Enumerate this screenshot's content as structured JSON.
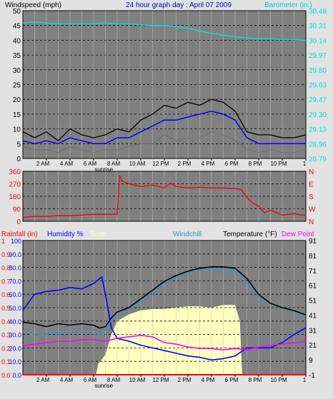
{
  "colors": {
    "background": "#e2e2e2",
    "plot_bg": "#808080",
    "grid": "#000000",
    "windspeed": "#000000",
    "windspeed_avg": "#0000ff",
    "gust": "#707070",
    "barometer": "#00e0e0",
    "direction": "#ff0000",
    "humidity": "#0000ff",
    "solar": "#ffffc0",
    "windchill": "#3399cc",
    "temperature": "#000000",
    "dewpoint": "#ff00ff",
    "rain": "#ff0000"
  },
  "chart_data": [
    {
      "type": "line",
      "title": "24 hour graph day : April 07 2009",
      "ylabel": "Windspeed (mph)",
      "y2label": "Barometer (in.)",
      "ylim": [
        0,
        50
      ],
      "y_ticks": [
        "0",
        "5",
        "10",
        "15",
        "20",
        "25",
        "30",
        "35",
        "40",
        "45",
        "50"
      ],
      "y2lim": [
        28.79,
        30.48
      ],
      "y2_ticks": [
        "28.79",
        "28.96",
        "29.13",
        "29.30",
        "29.47",
        "29.63",
        "29.80",
        "29.97",
        "30.14",
        "30.31",
        "30.48"
      ],
      "xlim": [
        0,
        24
      ],
      "x_ticks": [
        "2 AM",
        "4 AM",
        "6 AM",
        "8 AM",
        "10 AM",
        "12 PM",
        "2 PM",
        "4 PM",
        "6 PM",
        "8 PM",
        "10 PM",
        "1"
      ],
      "annotations": [
        "sunrise"
      ],
      "sunrise_hour": 6.5,
      "grid": true,
      "series": [
        {
          "role": "barometer",
          "axis": "right",
          "x": [
            0,
            1,
            2,
            3,
            4,
            5,
            6,
            7,
            8,
            9,
            10,
            11,
            12,
            13,
            14,
            15,
            16,
            17,
            18,
            19,
            20,
            21,
            22,
            23,
            24
          ],
          "values": [
            30.34,
            30.35,
            30.34,
            30.33,
            30.33,
            30.33,
            30.33,
            30.34,
            30.33,
            30.33,
            30.32,
            30.31,
            30.31,
            30.3,
            30.28,
            30.25,
            30.22,
            30.2,
            30.18,
            30.17,
            30.16,
            30.16,
            30.15,
            30.15,
            30.14
          ]
        },
        {
          "role": "windspeed",
          "axis": "left",
          "x": [
            0,
            1,
            2,
            3,
            4,
            5,
            6,
            7,
            8,
            9,
            10,
            11,
            12,
            13,
            14,
            15,
            16,
            17,
            18,
            19,
            20,
            21,
            22,
            23,
            24
          ],
          "values": [
            9,
            7,
            9,
            6,
            10,
            8,
            7,
            8,
            10,
            9,
            13,
            15,
            18,
            17,
            19,
            18,
            20,
            19,
            16,
            9,
            8,
            8,
            7,
            7,
            8
          ]
        },
        {
          "role": "windspeed_avg",
          "axis": "left",
          "x": [
            0,
            1,
            2,
            3,
            4,
            5,
            6,
            7,
            8,
            9,
            10,
            11,
            12,
            13,
            14,
            15,
            16,
            17,
            18,
            19,
            20,
            21,
            22,
            23,
            24
          ],
          "values": [
            6,
            5,
            6,
            5,
            7,
            6,
            5,
            5,
            7,
            7,
            9,
            11,
            13,
            13,
            14,
            15,
            16,
            15,
            13,
            7,
            5,
            5,
            5,
            5,
            5
          ]
        },
        {
          "role": "gust",
          "axis": "left",
          "x": [
            0,
            1,
            2,
            3,
            4,
            5,
            6,
            7,
            8,
            9,
            10,
            11,
            12,
            13,
            14,
            15,
            16,
            17,
            18,
            19,
            20,
            21,
            22,
            23,
            24
          ],
          "values": [
            4,
            3,
            3,
            2,
            4,
            3,
            2,
            3,
            3,
            4,
            5,
            5,
            8,
            6,
            7,
            7,
            9,
            8,
            6,
            3,
            2,
            3,
            2,
            2,
            3
          ]
        }
      ]
    },
    {
      "type": "line",
      "ylim": [
        0,
        360
      ],
      "y_ticks": [
        "0",
        "90",
        "180",
        "270",
        "360"
      ],
      "y2_ticks": [
        "N",
        "W",
        "S",
        "E",
        "N"
      ],
      "xlim": [
        0,
        24
      ],
      "series": [
        {
          "role": "direction",
          "x": [
            0,
            1,
            2,
            3,
            4,
            5,
            6,
            7,
            8,
            8.2,
            8.4,
            9,
            10,
            11,
            12,
            12.5,
            13,
            14,
            15,
            16,
            17,
            18,
            18.5,
            19,
            19.5,
            20,
            20.5,
            21,
            22,
            23,
            24
          ],
          "values": [
            30,
            35,
            35,
            40,
            40,
            45,
            50,
            50,
            50,
            330,
            290,
            270,
            250,
            260,
            240,
            275,
            250,
            240,
            245,
            240,
            240,
            235,
            230,
            170,
            130,
            110,
            60,
            80,
            45,
            55,
            40
          ]
        }
      ]
    },
    {
      "type": "line",
      "legend": [
        "Rainfall (in)",
        "Humidity %",
        "Solar",
        "Windchill",
        "Temperature (°F)",
        "Dew Point"
      ],
      "ylim": [
        0,
        100
      ],
      "y_ticks": [
        "0.0",
        "10.0",
        "20.0",
        "30.0",
        "40.0",
        "50.0",
        "60.0",
        "70.0",
        "80.0",
        "90.0",
        "100"
      ],
      "y_ticks_rain": [
        "0.0",
        "0.1",
        "0.2",
        "0.3",
        "0.4",
        "0.5",
        "0.6",
        "0.7",
        "0.8",
        "0.9",
        "1"
      ],
      "y2lim": [
        -1,
        91
      ],
      "y2_ticks": [
        "-1",
        "9",
        "21",
        "31",
        "41",
        "51",
        "61",
        "71",
        "81",
        "91"
      ],
      "xlim": [
        0,
        24
      ],
      "x_ticks": [
        "2 AM",
        "4 AM",
        "6 AM",
        "8 AM",
        "10 AM",
        "12 PM",
        "2 PM",
        "4 PM",
        "6 PM",
        "8 PM",
        "10 PM",
        "1"
      ],
      "annotations": [
        "sunrise"
      ],
      "series": [
        {
          "role": "humidity",
          "axis": "left",
          "x": [
            0,
            1,
            2,
            3,
            4,
            5,
            6,
            6.7,
            7,
            7.5,
            8,
            9,
            10,
            11,
            12,
            13,
            14,
            15,
            16,
            17,
            18,
            19,
            20,
            21,
            22,
            23,
            24
          ],
          "values": [
            48,
            60,
            62,
            63,
            65,
            64,
            68,
            73,
            60,
            35,
            27,
            25,
            22,
            20,
            18,
            16,
            14,
            13,
            11,
            12,
            14,
            20,
            20,
            20,
            24,
            30,
            35
          ]
        },
        {
          "role": "solar",
          "axis": "left",
          "x": [
            0,
            6.2,
            6.4,
            7,
            7.5,
            8,
            9,
            10,
            11,
            12,
            13,
            14,
            15,
            16,
            17,
            18,
            18.4,
            18.6,
            24
          ],
          "values": [
            0,
            0,
            8,
            15,
            30,
            40,
            45,
            48,
            49,
            49,
            50,
            51,
            51,
            50,
            52,
            52,
            40,
            0,
            0
          ]
        },
        {
          "role": "windchill",
          "axis": "right",
          "x": [
            0,
            1,
            2,
            3,
            4,
            5,
            6,
            6.5,
            7,
            7.5,
            8,
            9,
            10,
            11,
            12,
            13,
            14,
            15,
            16,
            17,
            18,
            19,
            20,
            21,
            22,
            23,
            24
          ],
          "values": [
            29,
            26,
            27,
            28,
            28,
            29,
            30,
            25,
            30,
            37,
            40,
            44,
            49,
            56,
            62,
            66,
            69,
            71,
            72,
            72,
            70,
            62,
            53,
            48,
            45,
            42,
            39
          ]
        },
        {
          "role": "temperature",
          "axis": "right",
          "x": [
            0,
            1,
            2,
            3,
            4,
            5,
            6,
            6.5,
            7,
            7.5,
            8,
            9,
            10,
            11,
            12,
            13,
            14,
            15,
            16,
            17,
            18,
            19,
            20,
            21,
            22,
            23,
            24
          ],
          "values": [
            35,
            34,
            32,
            34,
            33,
            34,
            33,
            31,
            32,
            38,
            42,
            45,
            51,
            57,
            63,
            67,
            70,
            72,
            73,
            73,
            72,
            65,
            54,
            48,
            45,
            43,
            40
          ]
        },
        {
          "role": "dewpoint",
          "axis": "right",
          "x": [
            0,
            1,
            2,
            3,
            4,
            5,
            6,
            7,
            8,
            9,
            10,
            11,
            12,
            13,
            14,
            15,
            16,
            17,
            18,
            19,
            20,
            21,
            22,
            23,
            24
          ],
          "values": [
            19,
            20,
            21,
            22,
            22,
            23,
            23,
            22,
            24,
            25,
            26,
            25,
            21,
            20,
            18,
            17,
            17,
            16,
            17,
            16,
            18,
            19,
            20,
            21,
            22
          ]
        },
        {
          "role": "rain",
          "axis": "left",
          "x": [
            0,
            24
          ],
          "values": [
            0,
            0
          ]
        }
      ]
    }
  ]
}
